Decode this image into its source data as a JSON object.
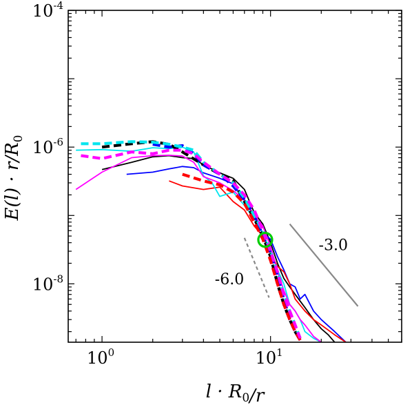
{
  "chart_data": {
    "type": "line",
    "title": "",
    "xlabel": "l · R0/r",
    "ylabel": "E(l) · r/R0",
    "xscale": "log",
    "yscale": "log",
    "xlim": [
      0.63,
      60
    ],
    "ylim": [
      1.4e-09,
      0.0001
    ],
    "x_ticks": [
      {
        "value": 1,
        "base": "10",
        "exp": "0"
      },
      {
        "value": 10,
        "base": "10",
        "exp": "1"
      }
    ],
    "y_ticks": [
      {
        "value": 1e-08,
        "base": "10",
        "exp": "-8"
      },
      {
        "value": 1e-06,
        "base": "10",
        "exp": "-6"
      },
      {
        "value": 0.0001,
        "base": "10",
        "exp": "-4"
      }
    ],
    "legend": "none",
    "grid": false,
    "series": [
      {
        "color": "#000000",
        "style": "solid",
        "points": [
          [
            1.0,
            4.7e-07
          ],
          [
            1.5,
            6e-07
          ],
          [
            2.0,
            7.2e-07
          ],
          [
            2.5,
            7.5e-07
          ],
          [
            3.0,
            7e-07
          ],
          [
            3.5,
            6.8e-07
          ],
          [
            4.0,
            5.5e-07
          ],
          [
            5.0,
            4.2e-07
          ],
          [
            6.0,
            3.5e-07
          ],
          [
            7.0,
            2.4e-07
          ],
          [
            8.0,
            1.1e-07
          ],
          [
            9.0,
            7.5e-08
          ],
          [
            10.0,
            4e-08
          ],
          [
            11.0,
            2e-08
          ],
          [
            12.0,
            1.2e-08
          ],
          [
            13.0,
            9e-09
          ],
          [
            14.0,
            7e-09
          ],
          [
            16.0,
            4.5e-09
          ],
          [
            18.0,
            3e-09
          ],
          [
            20.0,
            2.2e-09
          ],
          [
            22.0,
            1.8e-09
          ],
          [
            24.0,
            1.4e-09
          ]
        ]
      },
      {
        "color": "#0000ff",
        "style": "solid",
        "points": [
          [
            1.4,
            4e-07
          ],
          [
            2.0,
            4.3e-07
          ],
          [
            2.5,
            4.8e-07
          ],
          [
            3.0,
            5.2e-07
          ],
          [
            3.5,
            5e-07
          ],
          [
            4.0,
            4.2e-07
          ],
          [
            5.0,
            3.5e-07
          ],
          [
            6.0,
            2.9e-07
          ],
          [
            7.0,
            1.7e-07
          ],
          [
            8.0,
            1e-07
          ],
          [
            9.0,
            5.5e-08
          ],
          [
            10.0,
            4.5e-08
          ],
          [
            11.0,
            2.5e-08
          ],
          [
            12.0,
            1.6e-08
          ],
          [
            13.0,
            1e-08
          ],
          [
            14.0,
            9e-09
          ],
          [
            15.0,
            6e-09
          ],
          [
            16.0,
            7e-09
          ],
          [
            18.0,
            4e-09
          ],
          [
            20.0,
            3e-09
          ],
          [
            24.0,
            2e-09
          ],
          [
            28.0,
            1.4e-09
          ]
        ]
      },
      {
        "color": "#ff0000",
        "style": "solid",
        "points": [
          [
            2.5,
            3.2e-07
          ],
          [
            3.0,
            2.7e-07
          ],
          [
            4.0,
            2.4e-07
          ],
          [
            5.0,
            2.6e-07
          ],
          [
            6.0,
            1.6e-07
          ],
          [
            7.0,
            1.2e-07
          ],
          [
            8.0,
            7e-08
          ],
          [
            9.0,
            5e-08
          ],
          [
            10.0,
            2.8e-08
          ],
          [
            11.0,
            1.8e-08
          ],
          [
            12.0,
            1.5e-08
          ],
          [
            13.0,
            1e-08
          ],
          [
            14.0,
            6e-09
          ],
          [
            16.0,
            4e-09
          ],
          [
            18.0,
            3e-09
          ],
          [
            20.0,
            2.5e-09
          ],
          [
            24.0,
            1.8e-09
          ],
          [
            28.0,
            1.4e-09
          ]
        ]
      },
      {
        "color": "#00e5ee",
        "style": "solid",
        "points": [
          [
            0.7,
            9e-07
          ],
          [
            1.0,
            9.2e-07
          ],
          [
            1.5,
            8.7e-07
          ],
          [
            2.0,
            9.8e-07
          ],
          [
            2.5,
            9.5e-07
          ],
          [
            3.0,
            1e-06
          ],
          [
            3.5,
            8.5e-07
          ],
          [
            4.0,
            3.8e-07
          ],
          [
            4.5,
            3e-07
          ],
          [
            5.0,
            1.9e-07
          ],
          [
            6.0,
            2.2e-07
          ],
          [
            7.0,
            1.4e-07
          ],
          [
            8.0,
            9e-08
          ],
          [
            9.0,
            5.5e-08
          ],
          [
            10.0,
            3e-08
          ],
          [
            11.0,
            1.6e-08
          ],
          [
            12.0,
            1e-08
          ],
          [
            13.0,
            5e-09
          ],
          [
            14.0,
            4e-09
          ],
          [
            15.0,
            3e-09
          ],
          [
            16.0,
            2e-09
          ],
          [
            18.0,
            1.6e-09
          ],
          [
            20.0,
            1.4e-09
          ]
        ]
      },
      {
        "color": "#ff00ff",
        "style": "solid",
        "points": [
          [
            0.7,
            2.4e-07
          ],
          [
            1.0,
            4.3e-07
          ],
          [
            1.5,
            7e-07
          ],
          [
            2.0,
            7.5e-07
          ],
          [
            2.5,
            7.6e-07
          ],
          [
            3.0,
            7.4e-07
          ],
          [
            3.5,
            6e-07
          ],
          [
            4.0,
            3.7e-07
          ],
          [
            5.0,
            3e-07
          ],
          [
            6.0,
            2.3e-07
          ],
          [
            7.0,
            1.7e-07
          ],
          [
            8.0,
            1e-07
          ],
          [
            9.0,
            7e-08
          ],
          [
            10.0,
            3.5e-08
          ],
          [
            11.0,
            1.5e-08
          ],
          [
            12.0,
            8e-09
          ],
          [
            13.0,
            5e-09
          ],
          [
            14.0,
            4e-09
          ],
          [
            15.0,
            3e-09
          ],
          [
            16.0,
            2.5e-09
          ],
          [
            18.0,
            1.7e-09
          ],
          [
            20.0,
            1.4e-09
          ]
        ]
      },
      {
        "color": "#000000",
        "style": "dashed",
        "points": [
          [
            1.0,
            1e-06
          ],
          [
            1.5,
            1.12e-06
          ],
          [
            2.0,
            1.2e-06
          ],
          [
            2.5,
            1.1e-06
          ],
          [
            3.0,
            8.5e-07
          ],
          [
            4.0,
            5.5e-07
          ],
          [
            5.0,
            4e-07
          ],
          [
            6.0,
            3.2e-07
          ],
          [
            7.0,
            1.6e-07
          ],
          [
            8.0,
            9e-08
          ],
          [
            9.0,
            5e-08
          ],
          [
            10.0,
            2.5e-08
          ],
          [
            11.0,
            1e-08
          ],
          [
            12.0,
            5e-09
          ],
          [
            13.0,
            3e-09
          ],
          [
            14.0,
            2e-09
          ],
          [
            15.0,
            1.5e-09
          ]
        ]
      },
      {
        "color": "#0000ff",
        "style": "dashed",
        "points": [
          [
            2.0,
            1.1e-06
          ],
          [
            2.5,
            1e-06
          ],
          [
            3.0,
            1.05e-06
          ],
          [
            3.5,
            8e-07
          ],
          [
            4.0,
            5.5e-07
          ],
          [
            5.0,
            4e-07
          ],
          [
            6.0,
            2.7e-07
          ],
          [
            7.0,
            1.7e-07
          ],
          [
            8.0,
            1e-07
          ],
          [
            9.0,
            5e-08
          ],
          [
            10.0,
            2.8e-08
          ],
          [
            11.0,
            1.3e-08
          ],
          [
            12.0,
            6e-09
          ],
          [
            13.0,
            3e-09
          ],
          [
            14.0,
            2e-09
          ],
          [
            15.0,
            1.5e-09
          ]
        ]
      },
      {
        "color": "#ff0000",
        "style": "dashed",
        "points": [
          [
            3.0,
            4e-07
          ],
          [
            4.0,
            3.2e-07
          ],
          [
            5.0,
            2.8e-07
          ],
          [
            6.0,
            2.2e-07
          ],
          [
            7.0,
            1.5e-07
          ],
          [
            8.0,
            8e-08
          ],
          [
            9.0,
            4.5e-08
          ],
          [
            10.0,
            2.2e-08
          ],
          [
            11.0,
            1e-08
          ],
          [
            12.0,
            5e-09
          ],
          [
            13.0,
            3e-09
          ],
          [
            14.0,
            2e-09
          ],
          [
            15.0,
            1.5e-09
          ]
        ]
      },
      {
        "color": "#00e5ee",
        "style": "dashed",
        "points": [
          [
            0.75,
            1.12e-06
          ],
          [
            1.0,
            1.12e-06
          ],
          [
            1.5,
            1.2e-06
          ],
          [
            2.0,
            1.18e-06
          ],
          [
            2.5,
            1.1e-06
          ],
          [
            3.0,
            1e-06
          ],
          [
            3.5,
            9e-07
          ],
          [
            4.0,
            6e-07
          ],
          [
            5.0,
            4e-07
          ],
          [
            6.0,
            3e-07
          ],
          [
            7.0,
            1.8e-07
          ],
          [
            8.0,
            1e-07
          ],
          [
            9.0,
            6e-08
          ],
          [
            10.0,
            3e-08
          ],
          [
            11.0,
            1.5e-08
          ],
          [
            12.0,
            7e-09
          ],
          [
            13.0,
            4e-09
          ],
          [
            14.0,
            2.5e-09
          ],
          [
            15.0,
            1.6e-09
          ]
        ]
      },
      {
        "color": "#ff00ff",
        "style": "dashed",
        "points": [
          [
            0.75,
            7.5e-07
          ],
          [
            1.0,
            6.8e-07
          ],
          [
            1.5,
            8.5e-07
          ],
          [
            2.0,
            8e-07
          ],
          [
            2.5,
            9e-07
          ],
          [
            3.0,
            9e-07
          ],
          [
            3.5,
            8e-07
          ],
          [
            4.0,
            6e-07
          ],
          [
            5.0,
            4e-07
          ],
          [
            6.0,
            3e-07
          ],
          [
            7.0,
            2e-07
          ],
          [
            8.0,
            1.2e-07
          ],
          [
            9.0,
            6e-08
          ],
          [
            10.0,
            3e-08
          ],
          [
            11.0,
            1.5e-08
          ],
          [
            12.0,
            7e-09
          ],
          [
            13.0,
            4e-09
          ],
          [
            14.0,
            2.5e-09
          ],
          [
            15.0,
            1.6e-09
          ]
        ]
      }
    ],
    "marker": {
      "x": 9.3,
      "y": 4.4e-08,
      "color": "#00cc00",
      "shape": "circle"
    },
    "reference_lines": [
      {
        "label": "-3.0",
        "color": "#888888",
        "style": "solid",
        "from": [
          13.0,
          7.5e-08
        ],
        "to": [
          33.0,
          4.7e-09
        ]
      },
      {
        "label": "-6.0",
        "color": "#888888",
        "style": "dashed",
        "from": [
          7.0,
          4.7e-08
        ],
        "to": [
          9.8,
          6.3e-09
        ]
      }
    ]
  }
}
